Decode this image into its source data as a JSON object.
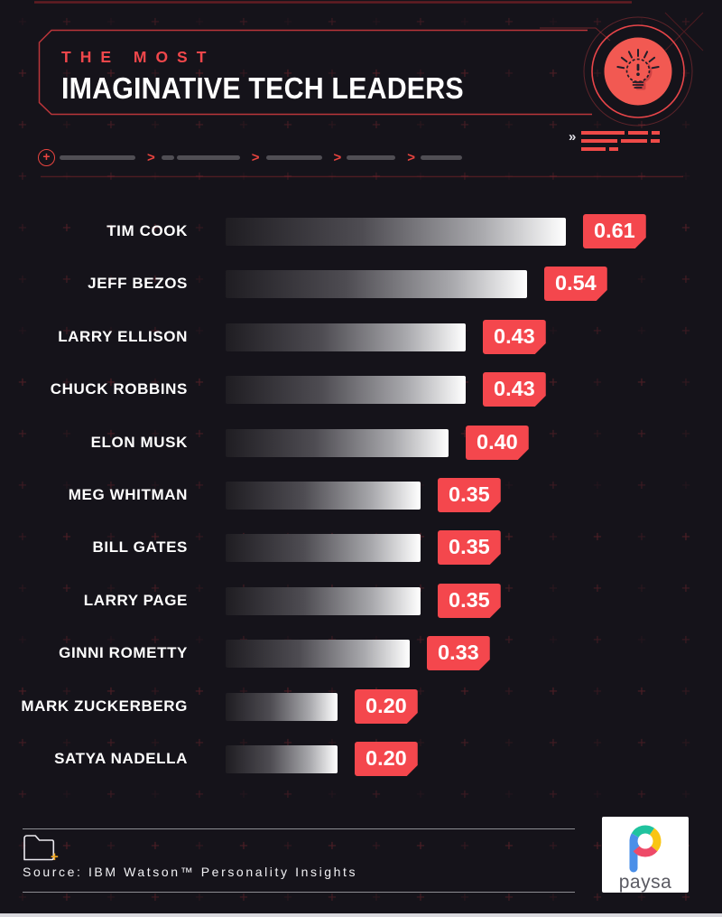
{
  "page": {
    "background_color": "#15131a",
    "accent_red": "#f0474b"
  },
  "header": {
    "eyebrow": "THE MOST",
    "title": "IMAGINATIVE TECH LEADERS",
    "bulb_icon": "lightbulb-exclamation-icon",
    "forward_chevrons": "»",
    "step_chevron": ">",
    "step_plus": "+"
  },
  "chart_data": {
    "type": "bar",
    "orientation": "horizontal",
    "title": "The Most Imaginative Tech Leaders",
    "categories": [
      "TIM COOK",
      "JEFF BEZOS",
      "LARRY ELLISON",
      "CHUCK ROBBINS",
      "ELON MUSK",
      "MEG WHITMAN",
      "BILL GATES",
      "LARRY PAGE",
      "GINNI ROMETTY",
      "MARK ZUCKERBERG",
      "SATYA NADELLA"
    ],
    "values": [
      0.61,
      0.54,
      0.43,
      0.43,
      0.4,
      0.35,
      0.35,
      0.35,
      0.33,
      0.2,
      0.2
    ],
    "value_labels": [
      "0.61",
      "0.54",
      "0.43",
      "0.43",
      "0.40",
      "0.35",
      "0.35",
      "0.35",
      "0.33",
      "0.20",
      "0.20"
    ],
    "xlim": [
      0,
      0.66
    ],
    "grid": false,
    "legend": false,
    "bar_gradient": [
      "#1f1d22",
      "#ffffff"
    ],
    "badge_color": "#f4474d",
    "label_color": "#ffffff"
  },
  "footer": {
    "source": "Source: IBM Watson™ Personality Insights",
    "folder_icon": "folder-icon",
    "folder_plus": "+",
    "brand": {
      "name": "paysa",
      "logo_colors": {
        "blue": "#4a8fe8",
        "teal": "#20c39e",
        "yellow": "#f9c513",
        "pink": "#ee4a68"
      },
      "text_color": "#5a5a62"
    }
  }
}
